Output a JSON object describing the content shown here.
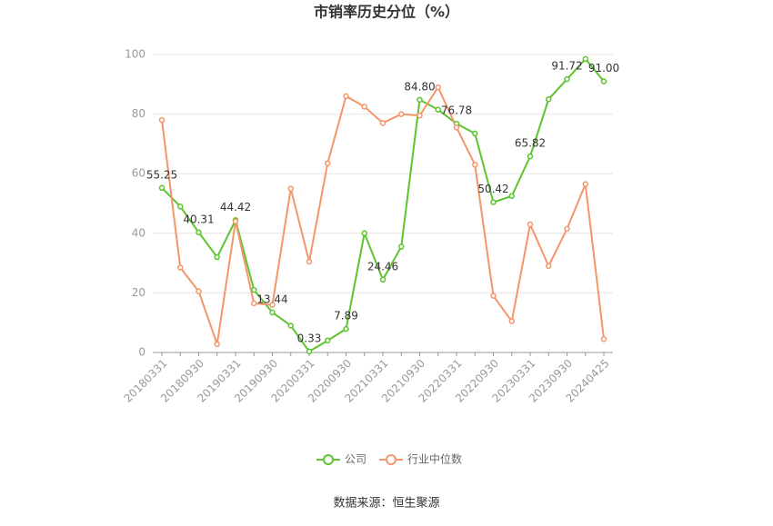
{
  "chart_data": {
    "type": "line",
    "title": "市销率历史分位（%）",
    "categories": [
      "20180331",
      null,
      "20180930",
      null,
      "20190331",
      null,
      "20190930",
      null,
      "20200331",
      null,
      "20200930",
      null,
      "20210331",
      null,
      "20210930",
      null,
      "20220331",
      null,
      "20220930",
      null,
      "20230331",
      null,
      "20230930",
      null,
      "20240425"
    ],
    "series": [
      {
        "name": "公司",
        "color": "#5cc42c",
        "values": [
          55.25,
          49,
          40.31,
          32,
          44.42,
          21,
          13.44,
          9,
          0.33,
          4,
          7.89,
          40,
          24.46,
          35.5,
          84.8,
          81.5,
          76.78,
          73.5,
          50.42,
          52.5,
          65.82,
          85,
          91.72,
          98.5,
          91.0
        ],
        "value_labels": [
          "55.25",
          null,
          "40.31",
          null,
          "44.42",
          null,
          "13.44",
          null,
          "0.33",
          null,
          "7.89",
          null,
          "24.46",
          null,
          "84.80",
          null,
          "76.78",
          null,
          "50.42",
          null,
          "65.82",
          null,
          "91.72",
          null,
          "91.00"
        ]
      },
      {
        "name": "行业中位数",
        "color": "#f4956a",
        "values": [
          78,
          28.5,
          20.5,
          2.8,
          44,
          16.5,
          16,
          55,
          30.5,
          63.5,
          86,
          82.5,
          77,
          80,
          79.5,
          89,
          75.5,
          63,
          19,
          10.5,
          43,
          29,
          41.5,
          56.5,
          4.5
        ]
      }
    ],
    "ylim": [
      0,
      100
    ],
    "yticks": [
      0,
      20,
      40,
      60,
      80,
      100
    ],
    "grid": true,
    "legend": "bottom",
    "source": "数据来源：恒生聚源"
  }
}
